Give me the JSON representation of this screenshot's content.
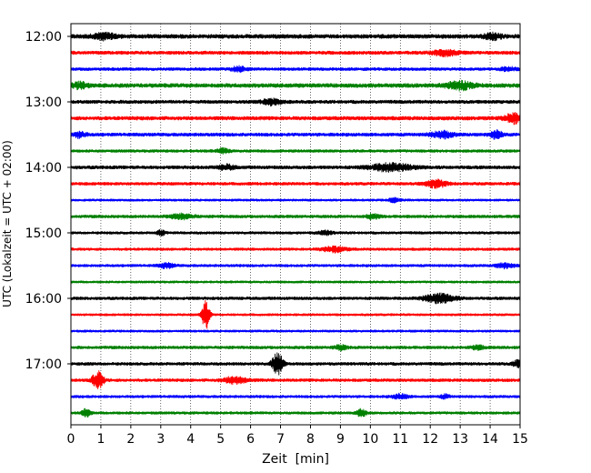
{
  "chart_data": {
    "type": "line",
    "subtype": "helicorder",
    "xlabel": "Zeit  [min]",
    "ylabel": "UTC (Lokalzeit = UTC + 02:00)",
    "xlim": [
      0,
      15
    ],
    "x_ticks": [
      0,
      1,
      2,
      3,
      4,
      5,
      6,
      7,
      8,
      9,
      10,
      11,
      12,
      13,
      14,
      15
    ],
    "y_ticks": [
      "12:00",
      "13:00",
      "14:00",
      "15:00",
      "16:00",
      "17:00"
    ],
    "grid": "vertical dotted lines at each minute",
    "legend": "none",
    "trace_colors": [
      "#000000",
      "#ff0000",
      "#0000ff",
      "#008000"
    ],
    "traces": [
      {
        "start": "12:00",
        "noise": 2.2,
        "events": [
          {
            "t": 1.1,
            "amp": 3,
            "dur": 0.8
          },
          {
            "t": 14.1,
            "amp": 3,
            "dur": 0.6
          }
        ]
      },
      {
        "start": "12:15",
        "noise": 1.8,
        "events": [
          {
            "t": 12.5,
            "amp": 3,
            "dur": 0.8
          }
        ]
      },
      {
        "start": "12:30",
        "noise": 1.6,
        "events": [
          {
            "t": 5.6,
            "amp": 2.5,
            "dur": 0.5
          },
          {
            "t": 14.6,
            "amp": 2,
            "dur": 0.5
          }
        ]
      },
      {
        "start": "12:45",
        "noise": 2.2,
        "events": [
          {
            "t": 0.3,
            "amp": 3,
            "dur": 0.5
          },
          {
            "t": 13.0,
            "amp": 4,
            "dur": 0.9
          }
        ]
      },
      {
        "start": "13:00",
        "noise": 1.8,
        "events": [
          {
            "t": 6.7,
            "amp": 3,
            "dur": 0.6
          }
        ]
      },
      {
        "start": "13:15",
        "noise": 2.0,
        "events": [
          {
            "t": 14.8,
            "amp": 5,
            "dur": 0.6
          }
        ]
      },
      {
        "start": "13:30",
        "noise": 1.8,
        "events": [
          {
            "t": 0.3,
            "amp": 3,
            "dur": 0.4
          },
          {
            "t": 12.4,
            "amp": 3.5,
            "dur": 0.7
          },
          {
            "t": 14.2,
            "amp": 4,
            "dur": 0.4
          }
        ]
      },
      {
        "start": "13:45",
        "noise": 1.5,
        "events": [
          {
            "t": 5.1,
            "amp": 2.5,
            "dur": 0.4
          }
        ]
      },
      {
        "start": "14:00",
        "noise": 1.8,
        "events": [
          {
            "t": 5.2,
            "amp": 2.5,
            "dur": 0.5
          },
          {
            "t": 10.7,
            "amp": 4,
            "dur": 1.4
          }
        ]
      },
      {
        "start": "14:15",
        "noise": 1.6,
        "events": [
          {
            "t": 12.2,
            "amp": 4,
            "dur": 0.7
          }
        ]
      },
      {
        "start": "14:30",
        "noise": 1.2,
        "events": [
          {
            "t": 10.8,
            "amp": 2,
            "dur": 0.4
          }
        ]
      },
      {
        "start": "14:45",
        "noise": 1.6,
        "events": [
          {
            "t": 3.7,
            "amp": 2.5,
            "dur": 0.8
          },
          {
            "t": 10.1,
            "amp": 2.5,
            "dur": 0.4
          }
        ]
      },
      {
        "start": "15:00",
        "noise": 1.4,
        "events": [
          {
            "t": 3.0,
            "amp": 2.5,
            "dur": 0.3
          },
          {
            "t": 8.5,
            "amp": 2,
            "dur": 0.5
          }
        ]
      },
      {
        "start": "15:15",
        "noise": 1.4,
        "events": [
          {
            "t": 8.8,
            "amp": 3,
            "dur": 0.8
          }
        ]
      },
      {
        "start": "15:30",
        "noise": 1.4,
        "events": [
          {
            "t": 3.2,
            "amp": 2.5,
            "dur": 0.5
          },
          {
            "t": 14.5,
            "amp": 2.5,
            "dur": 0.6
          }
        ]
      },
      {
        "start": "15:45",
        "noise": 1.2,
        "events": []
      },
      {
        "start": "16:00",
        "noise": 1.6,
        "events": [
          {
            "t": 12.3,
            "amp": 5,
            "dur": 1.0
          }
        ]
      },
      {
        "start": "16:15",
        "noise": 1.2,
        "events": [
          {
            "t": 4.5,
            "amp": 16,
            "dur": 0.25
          }
        ]
      },
      {
        "start": "16:30",
        "noise": 1.2,
        "events": []
      },
      {
        "start": "16:45",
        "noise": 1.6,
        "events": [
          {
            "t": 9.0,
            "amp": 2.5,
            "dur": 0.4
          },
          {
            "t": 13.6,
            "amp": 2,
            "dur": 0.4
          }
        ]
      },
      {
        "start": "17:00",
        "noise": 1.6,
        "events": [
          {
            "t": 6.9,
            "amp": 12,
            "dur": 0.35
          },
          {
            "t": 14.9,
            "amp": 3.5,
            "dur": 0.3
          }
        ]
      },
      {
        "start": "17:15",
        "noise": 1.6,
        "events": [
          {
            "t": 0.9,
            "amp": 10,
            "dur": 0.35
          },
          {
            "t": 5.5,
            "amp": 3.5,
            "dur": 0.8
          }
        ]
      },
      {
        "start": "17:30",
        "noise": 1.4,
        "events": [
          {
            "t": 11.0,
            "amp": 2.5,
            "dur": 0.5
          },
          {
            "t": 12.5,
            "amp": 2,
            "dur": 0.3
          }
        ]
      },
      {
        "start": "17:45",
        "noise": 1.4,
        "events": [
          {
            "t": 0.5,
            "amp": 4,
            "dur": 0.3
          },
          {
            "t": 9.7,
            "amp": 4,
            "dur": 0.3
          }
        ]
      }
    ]
  }
}
